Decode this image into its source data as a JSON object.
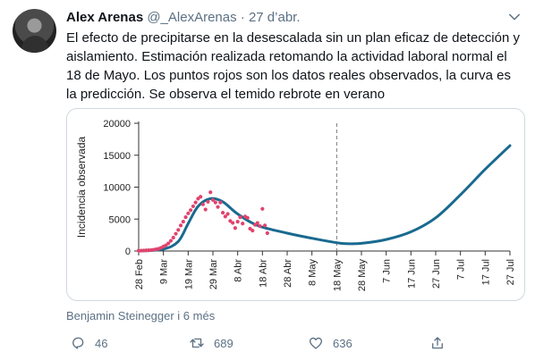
{
  "tweet": {
    "author_name": "Alex Arenas",
    "author_handle": "@_AlexArenas",
    "separator": "·",
    "date": "27 d’abr.",
    "text": "El efecto de precipitarse en la desescalada sin un plan eficaz de detección y aislamiento. Estimación realizada retomando la actividad laboral normal el 18 de Mayo. Los puntos rojos son los datos reales observados, la curva es la predicción. Se observa el temido rebrote en verano",
    "media_attribution": "Benjamin Steinegger i 6 més",
    "actions": {
      "reply_icon": "reply-icon",
      "reply_count": "46",
      "retweet_icon": "retweet-icon",
      "retweet_count": "689",
      "like_icon": "heart-icon",
      "like_count": "636",
      "share_icon": "share-icon"
    }
  },
  "chart_data": {
    "type": "line",
    "ylabel": "Incidencia observada",
    "xlabel": "",
    "ylim": [
      0,
      20000
    ],
    "yticks": [
      0,
      5000,
      10000,
      15000,
      20000
    ],
    "ytick_labels": [
      "0",
      "5000",
      "10000",
      "15000",
      "20000"
    ],
    "xticks": [
      "28 Feb",
      "9 Mar",
      "19 Mar",
      "29 Mar",
      "8 Abr",
      "18 Abr",
      "28 Abr",
      "8 May",
      "18 May",
      "28 May",
      "7 Jun",
      "17 Jun",
      "27 Jun",
      "7 Jul",
      "17 Jul",
      "27 Jul"
    ],
    "vline": {
      "x": "18 May",
      "style": "dashed"
    },
    "series": [
      {
        "kind": "points",
        "color": "#e0446e",
        "points": [
          [
            0,
            50
          ],
          [
            1,
            60
          ],
          [
            2,
            80
          ],
          [
            3,
            100
          ],
          [
            4,
            120
          ],
          [
            5,
            150
          ],
          [
            6,
            200
          ],
          [
            7,
            260
          ],
          [
            8,
            350
          ],
          [
            9,
            500
          ],
          [
            10,
            700
          ],
          [
            11,
            900
          ],
          [
            12,
            1200
          ],
          [
            13,
            1600
          ],
          [
            14,
            2100
          ],
          [
            15,
            2700
          ],
          [
            16,
            3300
          ],
          [
            17,
            4000
          ],
          [
            18,
            4600
          ],
          [
            19,
            5300
          ],
          [
            20,
            5900
          ],
          [
            21,
            6400
          ],
          [
            22,
            7000
          ],
          [
            23,
            7600
          ],
          [
            24,
            8200
          ],
          [
            25,
            8500
          ],
          [
            26,
            7300
          ],
          [
            27,
            6500
          ],
          [
            28,
            7700
          ],
          [
            29,
            9200
          ],
          [
            30,
            8000
          ],
          [
            31,
            7600
          ],
          [
            32,
            6900
          ],
          [
            33,
            7600
          ],
          [
            34,
            6000
          ],
          [
            35,
            5400
          ],
          [
            36,
            5800
          ],
          [
            37,
            4700
          ],
          [
            38,
            4400
          ],
          [
            39,
            3600
          ],
          [
            40,
            4600
          ],
          [
            41,
            5300
          ],
          [
            42,
            4300
          ],
          [
            43,
            5400
          ],
          [
            44,
            5200
          ],
          [
            45,
            3500
          ],
          [
            46,
            3200
          ],
          [
            47,
            4100
          ],
          [
            48,
            4400
          ],
          [
            49,
            3900
          ],
          [
            50,
            6600
          ],
          [
            51,
            4000
          ],
          [
            52,
            2800
          ]
        ]
      },
      {
        "kind": "curve",
        "color": "#1a6a8f",
        "points": [
          [
            0,
            0
          ],
          [
            10,
            300
          ],
          [
            16,
            1500
          ],
          [
            20,
            4300
          ],
          [
            24,
            7000
          ],
          [
            29,
            8200
          ],
          [
            34,
            7700
          ],
          [
            40,
            5800
          ],
          [
            48,
            4000
          ],
          [
            60,
            2800
          ],
          [
            70,
            2000
          ],
          [
            80,
            1300
          ],
          [
            84,
            1150
          ],
          [
            90,
            1200
          ],
          [
            100,
            1800
          ],
          [
            110,
            3000
          ],
          [
            120,
            5200
          ],
          [
            130,
            8800
          ],
          [
            140,
            12800
          ],
          [
            150,
            16500
          ]
        ]
      }
    ]
  }
}
